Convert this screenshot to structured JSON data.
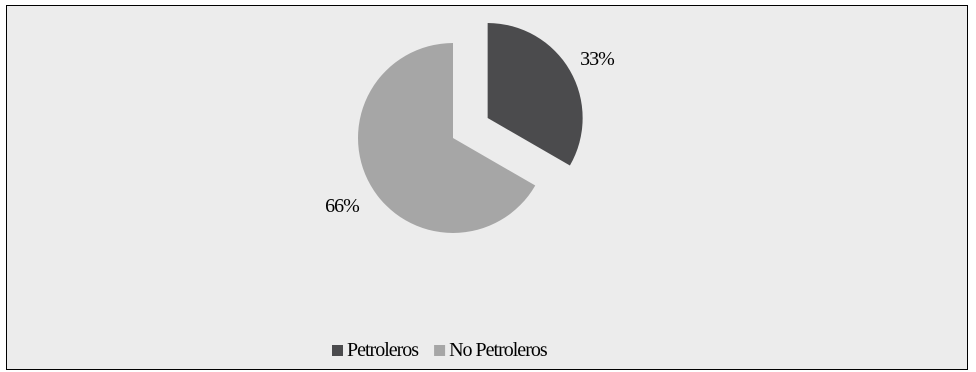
{
  "chart_data": {
    "type": "pie",
    "title": "",
    "categories": [
      "Petroleros",
      "No Petroleros"
    ],
    "values": [
      33,
      66
    ],
    "data_labels": [
      "33%",
      "66%"
    ],
    "colors": [
      "#4b4b4d",
      "#a6a6a6"
    ],
    "exploded": [
      "Petroleros"
    ],
    "legend": {
      "position": "bottom",
      "entries": [
        "Petroleros",
        "No Petroleros"
      ]
    },
    "background": "#ececec"
  }
}
